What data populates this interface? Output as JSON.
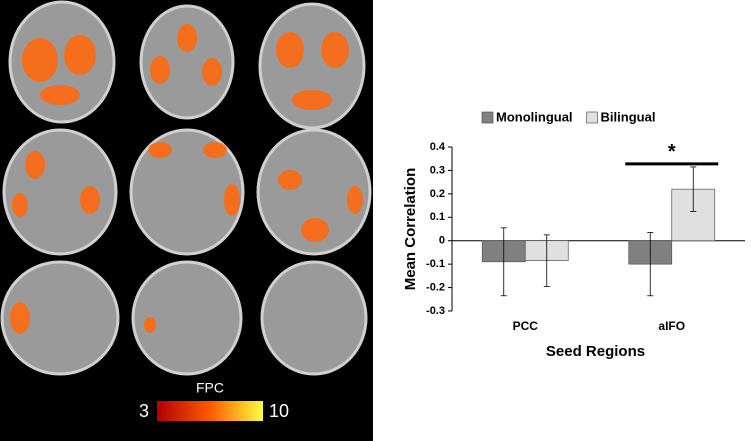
{
  "chart_data": {
    "type": "bar",
    "ylabel": "Mean Correlation",
    "xlabel": "Seed Regions",
    "categories": [
      "PCC",
      "aIFO"
    ],
    "series": [
      {
        "name": "Monolingual",
        "color": "#808080",
        "values": [
          -0.09,
          -0.1
        ],
        "errors": [
          0.145,
          0.135
        ]
      },
      {
        "name": "Bilingual",
        "color": "#e0e0e0",
        "values": [
          -0.085,
          0.22
        ],
        "errors": [
          0.11,
          0.095
        ]
      }
    ],
    "annotation": "*",
    "ylim": [
      -0.3,
      0.4
    ],
    "yticks": [
      -0.3,
      -0.2,
      -0.1,
      0,
      0.1,
      0.2,
      0.3,
      0.4
    ],
    "legend": "top"
  },
  "colorbar": {
    "title": "FPC",
    "ticks": [
      3,
      10
    ]
  }
}
